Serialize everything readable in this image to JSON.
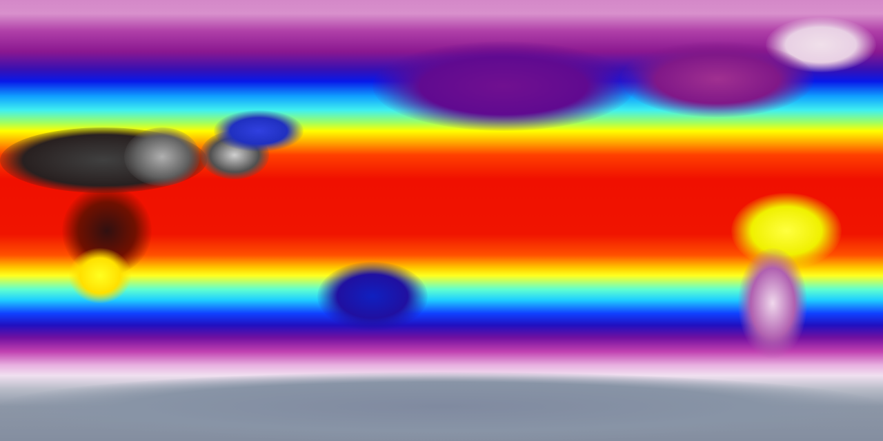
{
  "map": {
    "projection": "equirectangular",
    "palette": [
      "#d488c8",
      "#8a1890",
      "#0818e8",
      "#40f0f0",
      "#ffff00",
      "#f01000",
      "#303030",
      "#f0e0f0",
      "#8c96a6"
    ]
  }
}
